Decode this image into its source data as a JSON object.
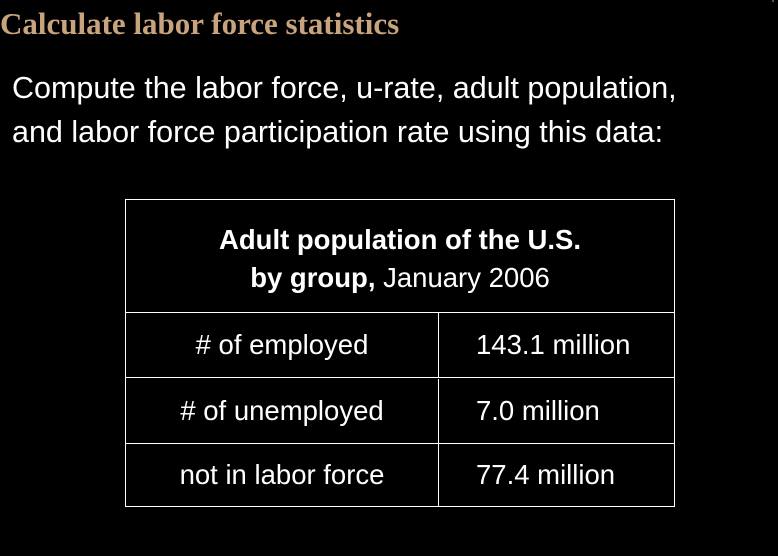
{
  "slide": {
    "title": "Calculate labor force statistics",
    "title_color": "#c8a47e",
    "background_color": "#000000",
    "text_color": "#ffffff",
    "body_lines": [
      "Compute the labor force, u-rate, adult population,",
      "and labor force participation rate using this data:"
    ]
  },
  "table": {
    "header_bold_line1": "Adult population of the U.S.",
    "header_bold_line2": "by group,",
    "header_regular_line2": " January 2006",
    "rows": [
      {
        "label": "# of employed",
        "value": "143.1 million"
      },
      {
        "label": "# of unemployed",
        "value": "7.0 million"
      },
      {
        "label": "not in labor force",
        "value": "77.4 million"
      }
    ]
  }
}
